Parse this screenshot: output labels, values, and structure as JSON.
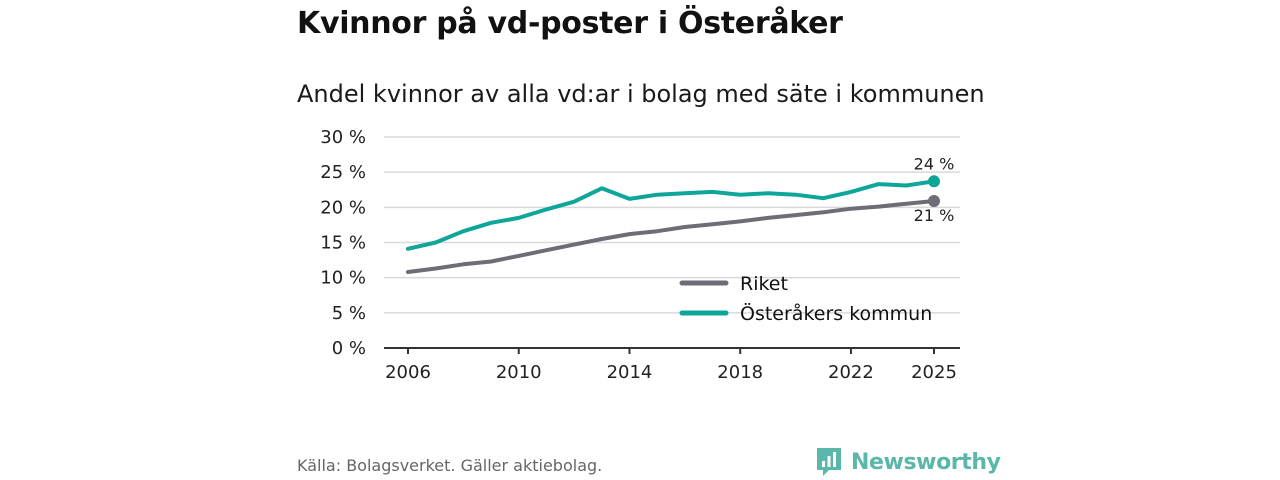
{
  "header": {
    "title": "Kvinnor på vd-poster i Österåker",
    "subtitle": "Andel kvinnor av alla vd:ar i bolag med säte i kommunen"
  },
  "footer": {
    "source": "Källa: Bolagsverket. Gäller aktiebolag.",
    "brand": "Newsworthy"
  },
  "colors": {
    "riket": "#6e6c74",
    "kommun": "#0fa69a",
    "brand": "#5bb7a9",
    "grid": "#d9d9d9"
  },
  "chart_data": {
    "type": "line",
    "title": "Kvinnor på vd-poster i Österåker",
    "subtitle": "Andel kvinnor av alla vd:ar i bolag med säte i kommunen",
    "xlabel": "",
    "ylabel": "",
    "xlim": [
      2006,
      2025
    ],
    "ylim": [
      0,
      30
    ],
    "x_ticks": [
      2006,
      2010,
      2014,
      2018,
      2022,
      2025
    ],
    "y_ticks": [
      0,
      5,
      10,
      15,
      20,
      25,
      30
    ],
    "y_tick_suffix": " %",
    "grid": true,
    "legend_position": "bottom-right",
    "x": [
      2006,
      2007,
      2008,
      2009,
      2010,
      2011,
      2012,
      2013,
      2014,
      2015,
      2016,
      2017,
      2018,
      2019,
      2020,
      2021,
      2022,
      2023,
      2024,
      2025
    ],
    "series": [
      {
        "name": "Riket",
        "color_key": "riket",
        "values": [
          10.8,
          11.3,
          11.9,
          12.3,
          13.1,
          13.9,
          14.7,
          15.5,
          16.2,
          16.6,
          17.2,
          17.6,
          18.0,
          18.5,
          18.9,
          19.3,
          19.8,
          20.1,
          20.5,
          20.9
        ],
        "end_label": "21 %"
      },
      {
        "name": "Österåkers kommun",
        "color_key": "kommun",
        "values": [
          14.1,
          15.0,
          16.6,
          17.8,
          18.5,
          19.7,
          20.8,
          22.7,
          21.2,
          21.8,
          22.0,
          22.2,
          21.8,
          22.0,
          21.8,
          21.3,
          22.2,
          23.3,
          23.1,
          23.7
        ],
        "end_label": "24 %"
      }
    ]
  }
}
